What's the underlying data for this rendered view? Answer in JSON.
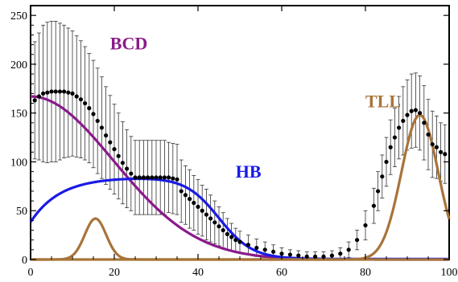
{
  "chart_data": {
    "type": "scatter",
    "title": "",
    "xlabel": "",
    "ylabel": "",
    "xlim": [
      0,
      100
    ],
    "ylim": [
      0,
      260
    ],
    "grid": false,
    "x_ticks": [
      0,
      20,
      40,
      60,
      80,
      100
    ],
    "y_ticks": [
      0,
      50,
      100,
      150,
      200,
      250
    ],
    "x_tick_labels": [
      "0",
      "20",
      "40",
      "60",
      "80",
      "100"
    ],
    "y_tick_labels": [
      "0",
      "50",
      "100",
      "150",
      "200",
      "250"
    ],
    "data_points": {
      "color": "#000000",
      "x": [
        1,
        2,
        3,
        4,
        5,
        6,
        7,
        8,
        9,
        10,
        11,
        12,
        13,
        14,
        15,
        16,
        17,
        18,
        19,
        20,
        21,
        22,
        23,
        24,
        25,
        26,
        27,
        28,
        29,
        30,
        31,
        32,
        33,
        34,
        35,
        36,
        37,
        38,
        39,
        40,
        41,
        42,
        43,
        44,
        45,
        46,
        47,
        48,
        49,
        50,
        52,
        54,
        56,
        58,
        60,
        62,
        64,
        66,
        68,
        70,
        72,
        74,
        76,
        78,
        80,
        82,
        83,
        84,
        85,
        86,
        87,
        88,
        89,
        90,
        91,
        92,
        93,
        94,
        95,
        96,
        97,
        98,
        99
      ],
      "y": [
        163,
        167,
        170,
        171,
        172,
        172,
        172,
        172,
        171,
        170,
        167,
        164,
        160,
        155,
        149,
        142,
        135,
        127,
        120,
        113,
        106,
        99,
        93,
        88,
        84,
        84,
        84,
        84,
        84,
        84,
        84,
        84,
        84,
        83,
        82,
        70,
        66,
        62,
        58,
        54,
        50,
        46,
        42,
        38,
        34,
        30,
        26,
        23,
        20,
        18,
        15,
        12,
        10,
        8,
        6,
        5,
        4,
        3,
        3,
        3,
        4,
        6,
        10,
        20,
        35,
        55,
        70,
        85,
        100,
        115,
        125,
        135,
        142,
        148,
        152,
        153,
        150,
        140,
        128,
        118,
        115,
        110,
        108
      ],
      "err": [
        60,
        65,
        70,
        72,
        72,
        72,
        70,
        68,
        66,
        64,
        62,
        60,
        58,
        56,
        55,
        54,
        52,
        50,
        48,
        46,
        44,
        42,
        40,
        38,
        38,
        38,
        38,
        38,
        38,
        38,
        38,
        38,
        36,
        36,
        36,
        32,
        30,
        30,
        28,
        28,
        26,
        26,
        24,
        22,
        20,
        18,
        16,
        14,
        12,
        11,
        10,
        9,
        8,
        7,
        6,
        5,
        5,
        5,
        5,
        5,
        5,
        6,
        8,
        10,
        15,
        18,
        20,
        22,
        25,
        28,
        30,
        32,
        35,
        36,
        38,
        38,
        38,
        38,
        36,
        34,
        32,
        30,
        30
      ]
    },
    "series": [
      {
        "name": "BCD",
        "color": "#8b1a8b"
      },
      {
        "name": "HB",
        "color": "#1a1ae6"
      },
      {
        "name": "TLL",
        "color": "#a8743a"
      }
    ],
    "annotations": [
      {
        "text": "BCD",
        "x": 19,
        "y": 215,
        "color": "#8b1a8b"
      },
      {
        "text": "HB",
        "x": 49,
        "y": 84,
        "color": "#1a1ae6"
      },
      {
        "text": "TLL",
        "x": 80,
        "y": 156,
        "color": "#a8743a"
      }
    ]
  }
}
